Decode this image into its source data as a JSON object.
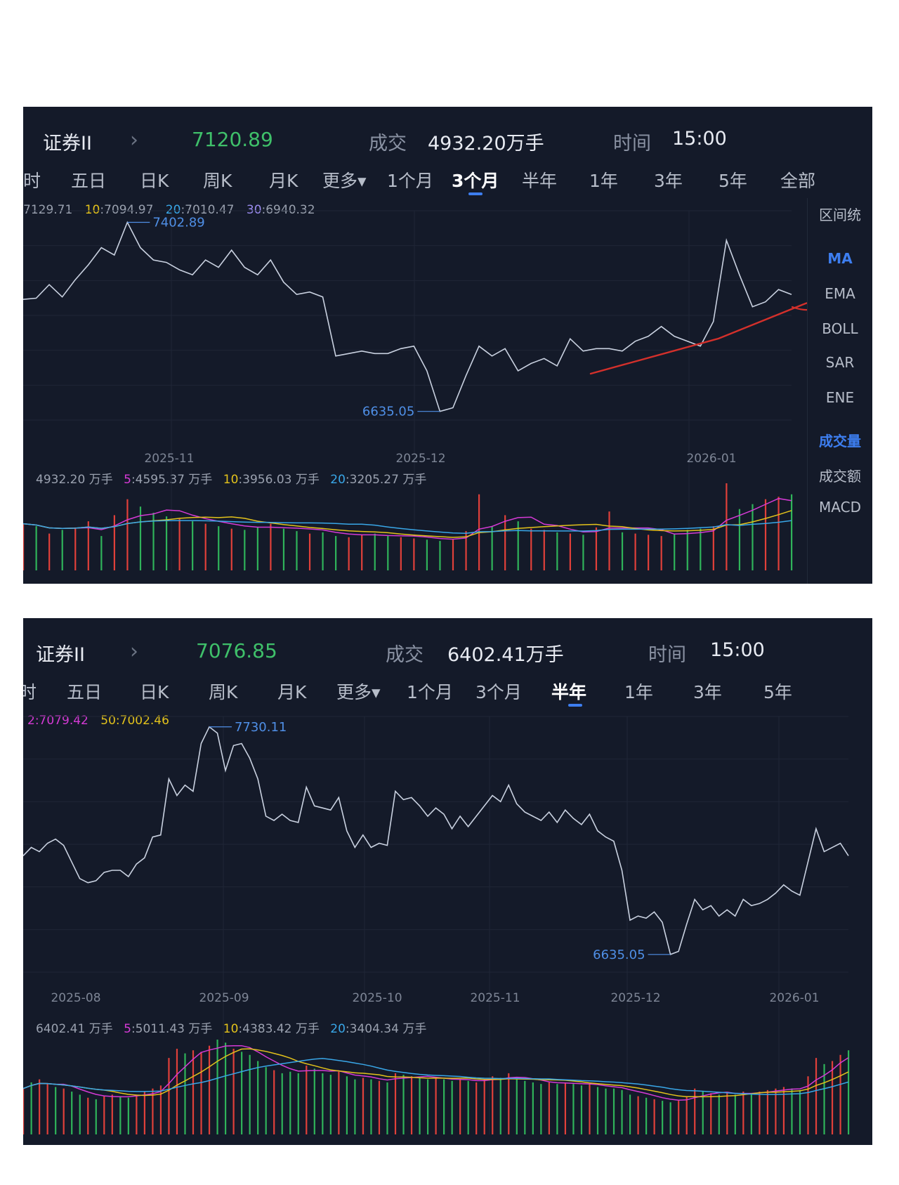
{
  "colors": {
    "bg": "#141a29",
    "up": "#e0403a",
    "down": "#2fb35a",
    "line": "#c9d1e0",
    "accent": "#3d7ef0",
    "price": "#3fc06a",
    "ma5": "#d63ad6",
    "ma10": "#e3c21b",
    "ma20": "#39a7e8",
    "ma30": "#9b8cf0",
    "annot": "#d4302b"
  },
  "panels": [
    {
      "header": {
        "title": "证券II",
        "chevron": "›",
        "price": "7120.89",
        "volume_label": "成交",
        "volume_value": "4932.20万手",
        "time_label": "时间",
        "time_value": "15:00"
      },
      "tabs": [
        "时",
        "五日",
        "日K",
        "周K",
        "月K",
        "更多▾",
        "1个月",
        "3个月",
        "半年",
        "1年",
        "3年",
        "5年",
        "全部"
      ],
      "active_tab": "3个月",
      "ma_legend": {
        "ma5_value": "7129.71",
        "ma10_key": "10",
        "ma10_value": ":7094.97",
        "ma20_key": "20",
        "ma20_value": ":7010.47",
        "ma30_key": "30",
        "ma30_value": ":6940.32"
      },
      "vol_legend": {
        "total": "4932.20 万手",
        "k5": "5",
        "v5": ":4595.37 万手",
        "k10": "10",
        "v10": ":3956.03 万手",
        "k20": "20",
        "v20": ":3205.27 万手"
      },
      "sidebar": [
        "区间统",
        "MA",
        "EMA",
        "BOLL",
        "SAR",
        "ENE",
        "成交量",
        "成交额",
        "MACD"
      ],
      "sidebar_active": [
        "MA",
        "成交量"
      ]
    },
    {
      "header": {
        "title": "证券II",
        "chevron": "›",
        "price": "7076.85",
        "volume_label": "成交",
        "volume_value": "6402.41万手",
        "time_label": "时间",
        "time_value": "15:00"
      },
      "tabs": [
        "时",
        "五日",
        "日K",
        "周K",
        "月K",
        "更多▾",
        "1个月",
        "3个月",
        "半年",
        "1年",
        "3年",
        "5年"
      ],
      "active_tab": "半年",
      "ma_legend": {
        "k2": "2",
        "v2": ":7079.42",
        "k50": "50",
        "v50": ":7002.46"
      },
      "vol_legend": {
        "total": "6402.41 万手",
        "k5": "5",
        "v5": ":5011.43 万手",
        "k10": "10",
        "v10": ":4383.42 万手",
        "k20": "20",
        "v20": ":3404.34 万手"
      }
    }
  ],
  "chart_data": [
    {
      "type": "line",
      "title": "证券II 3个月",
      "x_ticks": [
        "2025-11",
        "2025-12",
        "2026-01"
      ],
      "max_label": "7402.89",
      "min_label": "6635.05",
      "ylim": [
        6600,
        7450
      ],
      "y": [
        7090,
        7095,
        7150,
        7100,
        7170,
        7230,
        7300,
        7270,
        7402.89,
        7300,
        7250,
        7240,
        7210,
        7190,
        7250,
        7220,
        7290,
        7220,
        7190,
        7250,
        7160,
        7110,
        7120,
        7100,
        6860,
        6870,
        6880,
        6870,
        6870,
        6890,
        6900,
        6800,
        6635.05,
        6650,
        6780,
        6900,
        6860,
        6890,
        6800,
        6830,
        6850,
        6820,
        6930,
        6880,
        6890,
        6890,
        6880,
        6920,
        6940,
        6980,
        6940,
        6920,
        6900,
        7000,
        7330,
        7190,
        7060,
        7080,
        7130,
        7110
      ],
      "volume": [
        38,
        36,
        30,
        33,
        35,
        40,
        28,
        45,
        58,
        52,
        47,
        44,
        42,
        40,
        38,
        36,
        34,
        33,
        35,
        38,
        34,
        32,
        30,
        31,
        28,
        27,
        29,
        30,
        28,
        27,
        26,
        25,
        24,
        25,
        32,
        62,
        36,
        45,
        40,
        34,
        33,
        31,
        30,
        29,
        35,
        48,
        31,
        30,
        29,
        28,
        30,
        33,
        34,
        36,
        71,
        50,
        54,
        58,
        60,
        62
      ],
      "volume_up": [
        1,
        0,
        1,
        0,
        1,
        1,
        0,
        1,
        1,
        0,
        0,
        0,
        1,
        0,
        1,
        0,
        1,
        0,
        0,
        1,
        0,
        0,
        1,
        0,
        0,
        1,
        1,
        0,
        0,
        1,
        1,
        0,
        0,
        1,
        1,
        1,
        0,
        1,
        0,
        1,
        1,
        0,
        1,
        0,
        1,
        1,
        0,
        1,
        1,
        1,
        0,
        0,
        0,
        1,
        1,
        0,
        0,
        1,
        1,
        0
      ],
      "annotation": "red trend line"
    },
    {
      "type": "line",
      "title": "证券II 半年",
      "x_ticks": [
        "2025-08",
        "2025-09",
        "2025-10",
        "2025-11",
        "2025-12",
        "2026-01"
      ],
      "max_label": "7730.11",
      "min_label": "6635.05",
      "ylim": [
        6550,
        7780
      ],
      "y": [
        7110,
        7150,
        7130,
        7170,
        7190,
        7160,
        7080,
        7000,
        6980,
        6990,
        7030,
        7040,
        7040,
        7010,
        7070,
        7100,
        7200,
        7210,
        7480,
        7400,
        7450,
        7420,
        7650,
        7730.11,
        7700,
        7520,
        7640,
        7650,
        7580,
        7480,
        7300,
        7280,
        7310,
        7280,
        7270,
        7440,
        7350,
        7340,
        7330,
        7390,
        7230,
        7150,
        7210,
        7150,
        7170,
        7160,
        7420,
        7380,
        7390,
        7350,
        7300,
        7340,
        7310,
        7240,
        7300,
        7250,
        7300,
        7350,
        7400,
        7370,
        7450,
        7360,
        7320,
        7300,
        7280,
        7320,
        7270,
        7330,
        7290,
        7260,
        7310,
        7230,
        7200,
        7180,
        7040,
        6800,
        6820,
        6810,
        6840,
        6790,
        6635.05,
        6650,
        6780,
        6900,
        6850,
        6870,
        6820,
        6850,
        6820,
        6900,
        6870,
        6880,
        6900,
        6930,
        6970,
        6940,
        6920,
        7080,
        7240,
        7130,
        7150,
        7170,
        7110
      ],
      "volume": [
        30,
        34,
        36,
        33,
        31,
        30,
        28,
        26,
        24,
        23,
        25,
        26,
        25,
        24,
        26,
        28,
        30,
        32,
        50,
        56,
        53,
        55,
        54,
        58,
        62,
        60,
        56,
        54,
        52,
        48,
        44,
        42,
        40,
        41,
        40,
        45,
        43,
        40,
        39,
        41,
        38,
        36,
        37,
        36,
        35,
        34,
        40,
        39,
        38,
        37,
        36,
        37,
        36,
        35,
        36,
        35,
        34,
        36,
        38,
        37,
        40,
        36,
        35,
        34,
        33,
        34,
        33,
        34,
        33,
        32,
        33,
        31,
        30,
        30,
        29,
        26,
        25,
        24,
        23,
        22,
        21,
        22,
        25,
        30,
        28,
        27,
        26,
        27,
        26,
        28,
        27,
        28,
        29,
        30,
        31,
        30,
        29,
        38,
        50,
        46,
        48,
        52,
        55
      ],
      "volume_up": [
        1,
        0,
        1,
        1,
        0,
        1,
        0,
        0,
        1,
        0,
        1,
        1,
        0,
        0,
        1,
        1,
        1,
        1,
        1,
        1,
        0,
        1,
        1,
        1,
        0,
        0,
        1,
        0,
        0,
        0,
        0,
        1,
        0,
        0,
        0,
        1,
        0,
        0,
        0,
        1,
        0,
        0,
        1,
        0,
        1,
        0,
        1,
        0,
        1,
        0,
        0,
        1,
        0,
        0,
        1,
        0,
        1,
        1,
        1,
        0,
        1,
        0,
        0,
        0,
        0,
        1,
        0,
        1,
        0,
        0,
        1,
        0,
        0,
        0,
        0,
        0,
        1,
        0,
        1,
        0,
        0,
        1,
        1,
        1,
        0,
        1,
        0,
        1,
        0,
        1,
        0,
        1,
        1,
        1,
        1,
        0,
        0,
        1,
        1,
        0,
        1,
        1,
        0
      ]
    }
  ]
}
